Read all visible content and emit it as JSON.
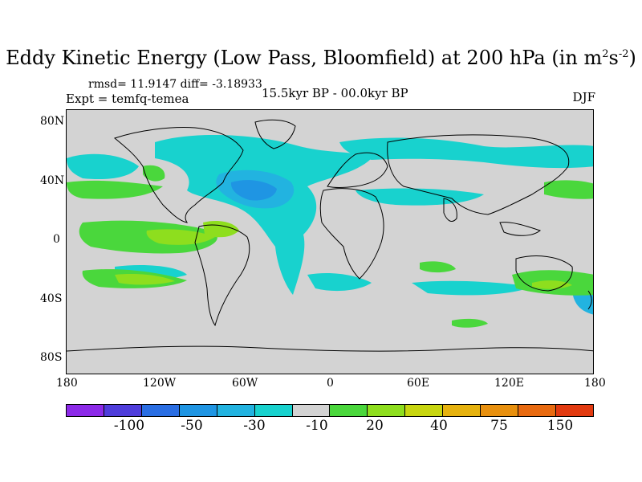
{
  "title": {
    "main": "Eddy Kinetic Energy (Low Pass, Bloomfield) at 200 hPa (in m",
    "sup1": "2",
    "mid": "s",
    "sup2": "-2",
    "end": ")"
  },
  "stats": "rmsd= 11.9147  diff= -3.18933",
  "expt": "Expt = temfq-temea",
  "period": "15.5kyr BP - 00.0kyr BP",
  "season": "DJF",
  "axes": {
    "y_ticks": [
      "80N",
      "40N",
      "0",
      "40S",
      "80S"
    ],
    "x_ticks": [
      "180",
      "120W",
      "60W",
      "0",
      "60E",
      "120E",
      "180"
    ]
  },
  "colorbar": {
    "colors": [
      "#8c2ae8",
      "#4f3ddb",
      "#2a6ee3",
      "#1f95e3",
      "#22b3e0",
      "#18d2ce",
      "#d3d3d3",
      "#4ad73c",
      "#8ede1e",
      "#c8d610",
      "#e6b20e",
      "#e8900e",
      "#e86a10",
      "#e23a10"
    ],
    "labels": [
      "-100",
      "-50",
      "-30",
      "-10",
      "20",
      "40",
      "75",
      "150"
    ]
  },
  "map_colors": {
    "background": "#d3d3d3",
    "negative_light": "#18d2ce",
    "negative_mid": "#22b3e0",
    "negative_strong": "#1f95e3",
    "positive_light": "#4ad73c",
    "positive_mid": "#8ede1e",
    "positive_strong": "#c8d610"
  }
}
